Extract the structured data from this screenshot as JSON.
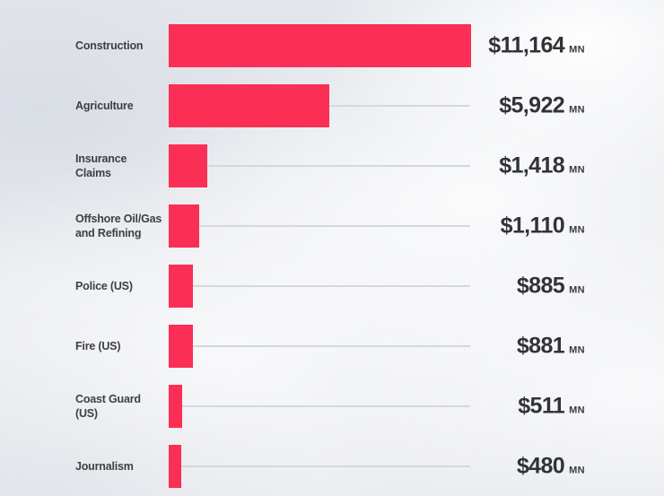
{
  "chart_data": {
    "type": "bar",
    "orientation": "horizontal",
    "title": "",
    "xlabel": "",
    "ylabel": "",
    "grid": false,
    "legend": false,
    "categories": [
      "Construction",
      "Agriculture",
      "Insurance Claims",
      "Offshore Oil/Gas and Refining",
      "Police (US)",
      "Fire (US)",
      "Coast Guard (US)",
      "Journalism"
    ],
    "display_labels": [
      "Construction",
      "Agriculture",
      "Insurance Claims",
      "Offshore Oil/Gas\nand Refining",
      "Police (US)",
      "Fire (US)",
      "Coast Guard (US)",
      "Journalism"
    ],
    "values": [
      11164,
      5922,
      1418,
      1110,
      885,
      881,
      511,
      480
    ],
    "value_labels": [
      "$11,164",
      "$5,922",
      "$1,418",
      "$1,110",
      "$885",
      "$881",
      "$511",
      "$480"
    ],
    "unit_suffix": "MN",
    "xlim": [
      0,
      11164
    ],
    "bar_color": "#fb2e56",
    "label_color": "#3e3f43",
    "value_color": "#323337",
    "unit_color": "#3a3b3f",
    "leader_line_color": "#d5d7de"
  }
}
